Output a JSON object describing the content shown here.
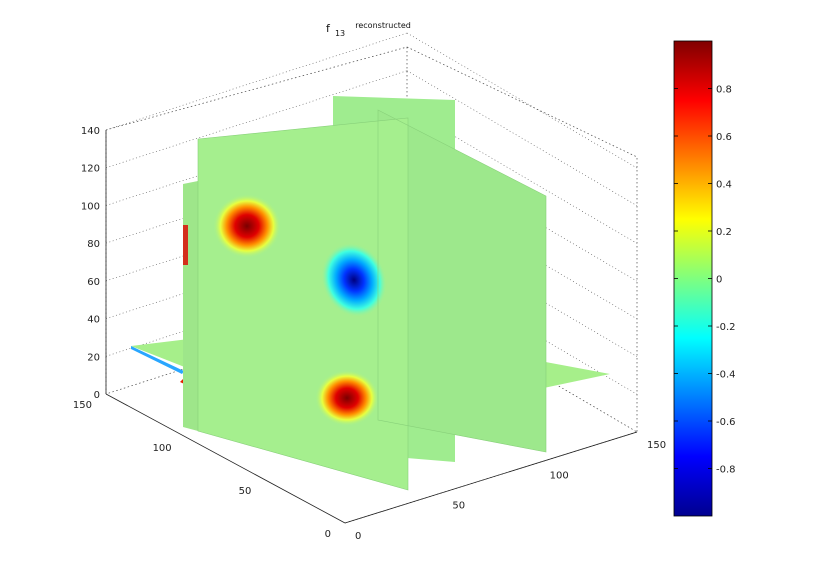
{
  "chart_data": {
    "type": "heatmap",
    "subtype": "3d-volume-slices",
    "title": {
      "main": "f",
      "subscript": "13",
      "suffix": "reconstructed"
    },
    "axes": {
      "x": {
        "ticks": [
          "0",
          "50",
          "100",
          "150"
        ],
        "range": [
          0,
          150
        ]
      },
      "y": {
        "ticks": [
          "0",
          "50",
          "100",
          "150"
        ],
        "range": [
          0,
          150
        ]
      },
      "z": {
        "ticks": [
          "0",
          "20",
          "40",
          "60",
          "80",
          "100",
          "120",
          "140"
        ],
        "range": [
          0,
          140
        ]
      }
    },
    "grid": true,
    "colormap": "jet",
    "colorbar": {
      "position": "right",
      "range": [
        -1,
        1
      ],
      "ticks": [
        "0.8",
        "0.6",
        "0.4",
        "0.2",
        "0",
        "-0.2",
        "-0.4",
        "-0.6",
        "-0.8"
      ],
      "tick_values": [
        0.8,
        0.6,
        0.4,
        0.2,
        0,
        -0.2,
        -0.4,
        -0.6,
        -0.8
      ]
    },
    "slice_background_value": 0.1,
    "features": [
      {
        "slice": "x-plane",
        "value": 0.85,
        "label": "positive peak upper"
      },
      {
        "slice": "x-plane",
        "value": -0.75,
        "label": "negative peak center"
      },
      {
        "slice": "x-plane",
        "value": 0.9,
        "label": "positive peak lower"
      },
      {
        "slice": "z-plane",
        "value": 0.9,
        "label": "positive streak"
      }
    ]
  }
}
